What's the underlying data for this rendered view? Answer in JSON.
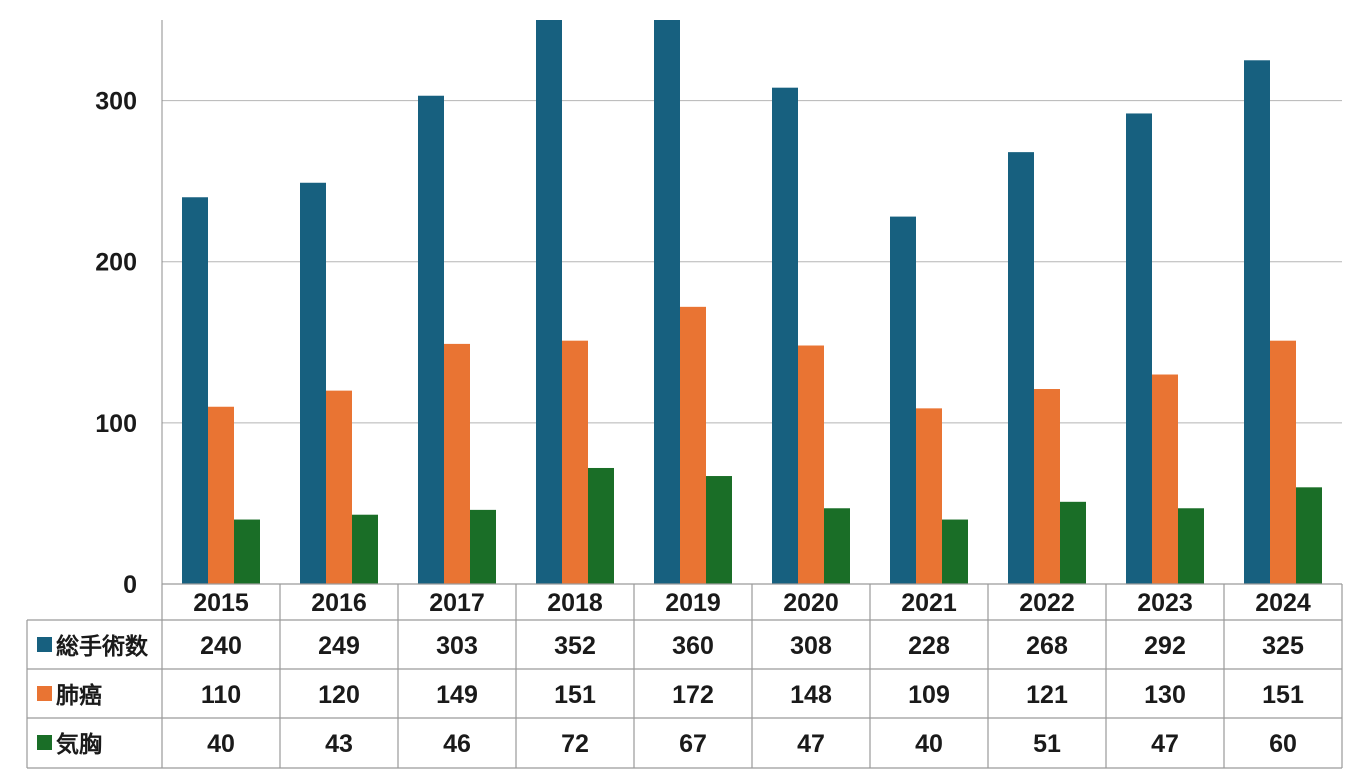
{
  "chart_data": {
    "type": "bar",
    "categories": [
      "2015",
      "2016",
      "2017",
      "2018",
      "2019",
      "2020",
      "2021",
      "2022",
      "2023",
      "2024"
    ],
    "series": [
      {
        "name": "総手術数",
        "color": "#17607f",
        "values": [
          240,
          249,
          303,
          352,
          360,
          308,
          228,
          268,
          292,
          325
        ]
      },
      {
        "name": "肺癌",
        "color": "#e97433",
        "values": [
          110,
          120,
          149,
          151,
          172,
          148,
          109,
          121,
          130,
          151
        ]
      },
      {
        "name": "気胸",
        "color": "#1a6e27",
        "values": [
          40,
          43,
          46,
          72,
          67,
          47,
          40,
          51,
          47,
          60
        ]
      }
    ],
    "yticks": [
      0,
      100,
      200,
      300
    ],
    "ylim": [
      0,
      350
    ],
    "grid": true,
    "legend": "data-table",
    "title": "",
    "xlabel": "",
    "ylabel": ""
  }
}
